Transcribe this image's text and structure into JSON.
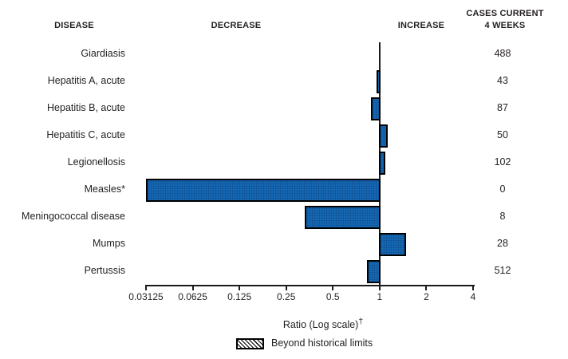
{
  "header": {
    "disease": "DISEASE",
    "decrease": "DECREASE",
    "increase": "INCREASE",
    "cases_line1": "CASES CURRENT",
    "cases_line2": "4 WEEKS"
  },
  "chart_data": {
    "type": "bar",
    "orientation": "horizontal",
    "scale": "log",
    "baseline_ratio": 1,
    "xlim": [
      0.03125,
      4
    ],
    "tick_labels": [
      "0.03125",
      "0.0625",
      "0.125",
      "0.25",
      "0.5",
      "1",
      "2",
      "4"
    ],
    "xlabel_text": "Ratio (Log scale)",
    "xlabel_dagger": "†",
    "legend_label": "Beyond historical limits",
    "legend_swatch_style": "diagonal-hatch",
    "bar_fill_color": "#1568b4",
    "bar_border_color": "#000000",
    "rows": [
      {
        "disease": "Giardiasis",
        "ratio": 1.0,
        "cases": "488"
      },
      {
        "disease": "Hepatitis A, acute",
        "ratio": 0.95,
        "cases": "43"
      },
      {
        "disease": "Hepatitis B, acute",
        "ratio": 0.88,
        "cases": "87"
      },
      {
        "disease": "Hepatitis C, acute",
        "ratio": 1.12,
        "cases": "50"
      },
      {
        "disease": "Legionellosis",
        "ratio": 1.09,
        "cases": "102"
      },
      {
        "disease": "Measles*",
        "ratio": 0.03125,
        "cases": "0"
      },
      {
        "disease": "Meningococcal disease",
        "ratio": 0.33,
        "cases": "8"
      },
      {
        "disease": "Mumps",
        "ratio": 1.47,
        "cases": "28"
      },
      {
        "disease": "Pertussis",
        "ratio": 0.83,
        "cases": "512"
      }
    ]
  }
}
